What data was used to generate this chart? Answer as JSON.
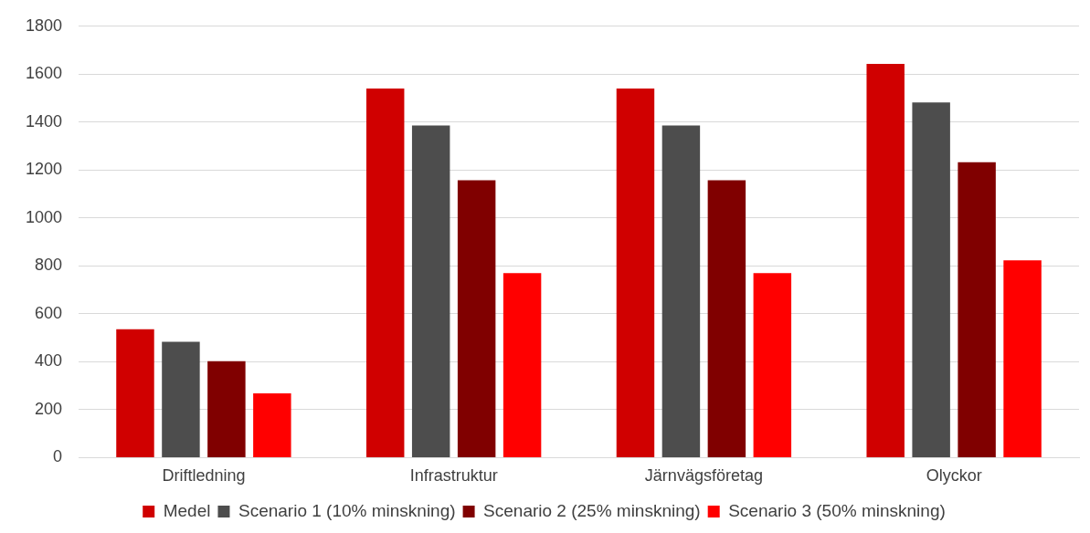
{
  "chart_data": {
    "type": "bar",
    "categories": [
      "Driftledning",
      "Infrastruktur",
      "Järnvägsföretag",
      "Olyckor"
    ],
    "series": [
      {
        "name": "Medel",
        "color": "#d00000",
        "values": [
          536,
          1540,
          1540,
          1643
        ]
      },
      {
        "name": "Scenario 1 (10% minskning)",
        "color": "#4d4d4d",
        "values": [
          483,
          1386,
          1386,
          1482
        ]
      },
      {
        "name": "Scenario 2 (25% minskning)",
        "color": "#800000",
        "values": [
          402,
          1157,
          1157,
          1233
        ]
      },
      {
        "name": "Scenario 3 (50% minskning)",
        "color": "#ff0000",
        "values": [
          268,
          770,
          770,
          823
        ]
      }
    ],
    "ylim": [
      0,
      1800
    ],
    "yticks": [
      0,
      200,
      400,
      600,
      800,
      1000,
      1200,
      1400,
      1600,
      1800
    ],
    "grid": "y",
    "legend": "bottom"
  }
}
